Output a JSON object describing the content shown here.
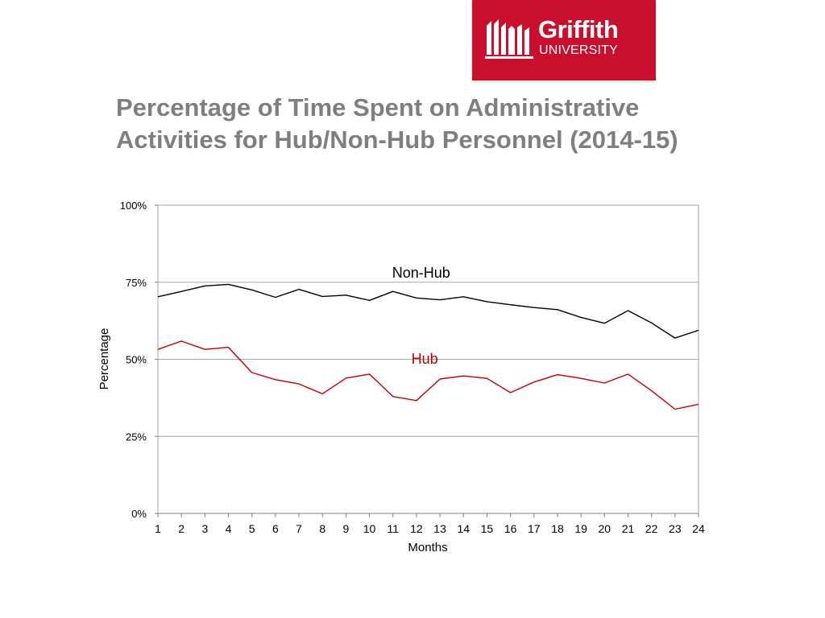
{
  "logo": {
    "name": "Griffith",
    "subtitle": "UNIVERSITY",
    "background_color": "#c8102e"
  },
  "slide": {
    "title": "Percentage of Time Spent on Administrative Activities for Hub/Non-Hub Personnel (2014-15)"
  },
  "chart_data": {
    "type": "line",
    "title": "",
    "xlabel": "Months",
    "ylabel": "Percentage",
    "x": [
      1,
      2,
      3,
      4,
      5,
      6,
      7,
      8,
      9,
      10,
      11,
      12,
      13,
      14,
      15,
      16,
      17,
      18,
      19,
      20,
      21,
      22,
      23,
      24
    ],
    "ylim": [
      0,
      100
    ],
    "yticks": [
      0,
      25,
      50,
      75,
      100
    ],
    "ytick_labels": [
      "0%",
      "25%",
      "50%",
      "75%",
      "100%"
    ],
    "grid": true,
    "legend": "inline labels",
    "series": [
      {
        "name": "Non-Hub",
        "color": "#000000",
        "values": [
          70.3,
          72.0,
          73.8,
          74.3,
          72.5,
          70.1,
          72.7,
          70.4,
          70.8,
          69.1,
          72.0,
          69.9,
          69.3,
          70.3,
          68.7,
          67.7,
          66.8,
          66.1,
          63.6,
          61.7,
          65.8,
          61.8,
          56.9,
          59.4
        ]
      },
      {
        "name": "Hub",
        "color": "#c00000",
        "values": [
          53.2,
          55.9,
          53.2,
          53.9,
          45.7,
          43.4,
          42.0,
          38.8,
          43.9,
          45.2,
          37.9,
          36.6,
          43.6,
          44.6,
          43.8,
          39.2,
          42.6,
          45.0,
          43.8,
          42.3,
          45.2,
          39.8,
          33.8,
          35.4
        ]
      }
    ],
    "annotations": [
      {
        "text": "Non-Hub",
        "x": 12.2,
        "y": 76.5,
        "color": "#000000"
      },
      {
        "text": "Hub",
        "x": 12.35,
        "y": 48.5,
        "color": "#c00000"
      }
    ],
    "gridline_color": "#a6a6a6"
  }
}
